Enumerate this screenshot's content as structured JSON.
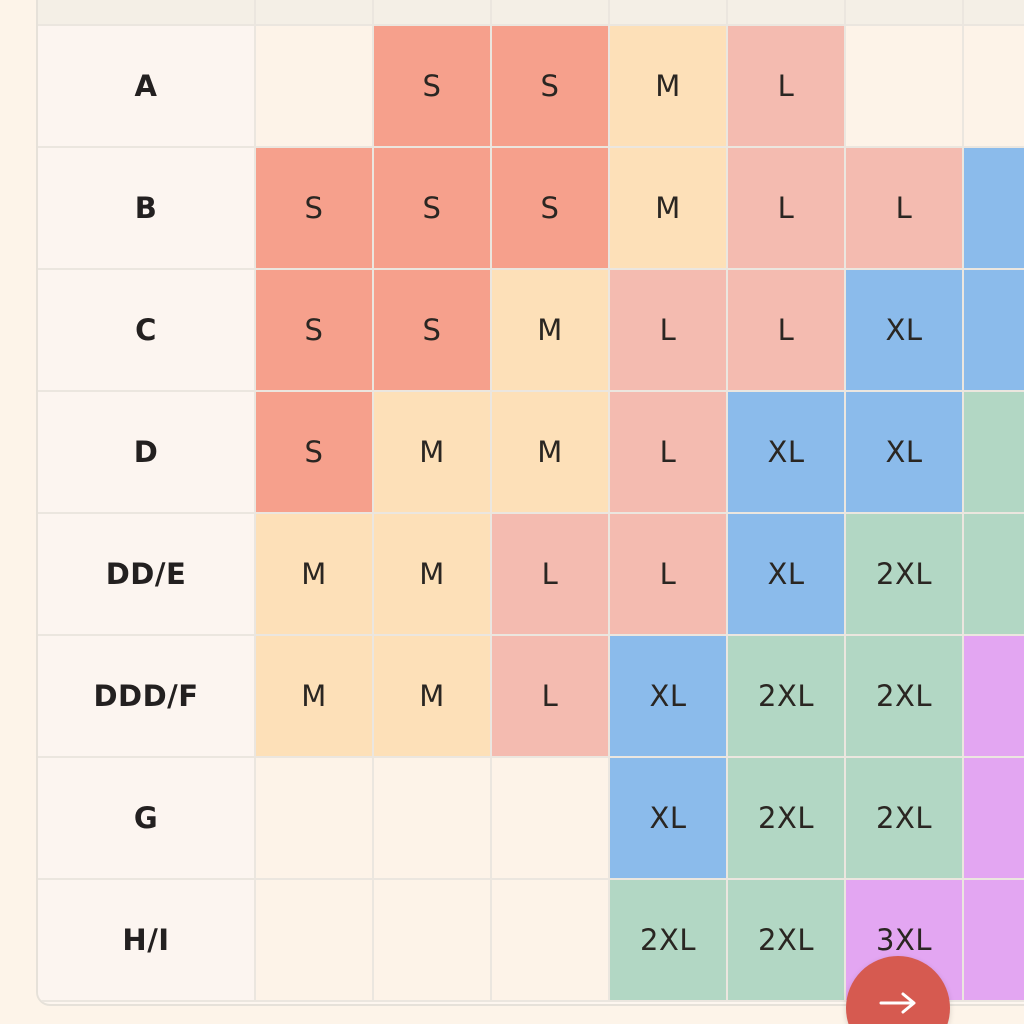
{
  "table": {
    "header": [
      "",
      "",
      "",
      "",
      "",
      "",
      "",
      ""
    ],
    "rows": [
      {
        "label": "A",
        "cells": [
          "",
          "S",
          "S",
          "M",
          "L",
          "",
          ""
        ]
      },
      {
        "label": "B",
        "cells": [
          "S",
          "S",
          "S",
          "M",
          "L",
          "L",
          ""
        ]
      },
      {
        "label": "C",
        "cells": [
          "S",
          "S",
          "M",
          "L",
          "L",
          "XL",
          ""
        ]
      },
      {
        "label": "D",
        "cells": [
          "S",
          "M",
          "M",
          "L",
          "XL",
          "XL",
          ""
        ]
      },
      {
        "label": "DD/E",
        "cells": [
          "M",
          "M",
          "L",
          "L",
          "XL",
          "2XL",
          ""
        ]
      },
      {
        "label": "DDD/F",
        "cells": [
          "M",
          "M",
          "L",
          "XL",
          "2XL",
          "2XL",
          ""
        ]
      },
      {
        "label": "G",
        "cells": [
          "",
          "",
          "",
          "XL",
          "2XL",
          "2XL",
          ""
        ]
      },
      {
        "label": "H/I",
        "cells": [
          "",
          "",
          "",
          "2XL",
          "2XL",
          "3XL",
          ""
        ]
      }
    ],
    "cell_colors": [
      [
        "empty",
        "S",
        "S",
        "M",
        "L",
        "empty",
        "empty"
      ],
      [
        "S",
        "S",
        "S",
        "M",
        "L",
        "L",
        "XL"
      ],
      [
        "S",
        "S",
        "M",
        "L",
        "L",
        "XL",
        "XL"
      ],
      [
        "S",
        "M",
        "M",
        "L",
        "XL",
        "XL",
        "X2"
      ],
      [
        "M",
        "M",
        "L",
        "L",
        "XL",
        "X2",
        "X2"
      ],
      [
        "M",
        "M",
        "L",
        "XL",
        "X2",
        "X2",
        "X3"
      ],
      [
        "empty",
        "empty",
        "empty",
        "XL",
        "X2",
        "X2",
        "X3"
      ],
      [
        "empty",
        "empty",
        "empty",
        "X2",
        "X2",
        "X3",
        "X3"
      ]
    ]
  },
  "size_colors": {
    "S": "#f6a08c",
    "M": "#fde0b8",
    "L": "#f4bbb0",
    "XL": "#8bbbeb",
    "2XL": "#b2d7c4",
    "3XL": "#e3a6f2"
  },
  "fab": {
    "icon": "arrow-right-icon",
    "color": "#d65a50"
  }
}
